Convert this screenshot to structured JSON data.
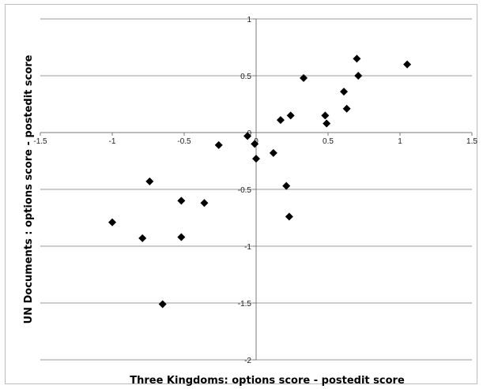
{
  "chart_data": {
    "type": "scatter",
    "xlabel": "Three Kingdoms: options score - postedit score",
    "ylabel": "UN Documents : options score - postedit score",
    "xlim": [
      -1.5,
      1.5
    ],
    "ylim": [
      -2,
      1
    ],
    "x_ticks": [
      "-1.5",
      "-1",
      "-0.5",
      "0",
      "0.5",
      "1",
      "1.5"
    ],
    "y_ticks": [
      "1",
      "0.5",
      "0",
      "-0.5",
      "-1",
      "-1.5",
      "-2"
    ],
    "x_tick_values": [
      -1.5,
      -1,
      -0.5,
      0,
      0.5,
      1,
      1.5
    ],
    "y_tick_values": [
      1,
      0.5,
      0,
      -0.5,
      -1,
      -1.5,
      -2
    ],
    "grid": "horizontal",
    "marker": "diamond",
    "marker_color": "#000000",
    "points": [
      {
        "x": 0.7,
        "y": 0.65
      },
      {
        "x": 1.05,
        "y": 0.6
      },
      {
        "x": 0.71,
        "y": 0.5
      },
      {
        "x": 0.33,
        "y": 0.48
      },
      {
        "x": 0.61,
        "y": 0.36
      },
      {
        "x": 0.63,
        "y": 0.21
      },
      {
        "x": 0.48,
        "y": 0.15
      },
      {
        "x": 0.24,
        "y": 0.15
      },
      {
        "x": 0.17,
        "y": 0.11
      },
      {
        "x": 0.49,
        "y": 0.08
      },
      {
        "x": -0.06,
        "y": -0.03
      },
      {
        "x": -0.26,
        "y": -0.11
      },
      {
        "x": -0.01,
        "y": -0.1
      },
      {
        "x": 0.12,
        "y": -0.18
      },
      {
        "x": 0.0,
        "y": -0.23
      },
      {
        "x": -0.74,
        "y": -0.43
      },
      {
        "x": 0.21,
        "y": -0.47
      },
      {
        "x": -0.52,
        "y": -0.6
      },
      {
        "x": -0.36,
        "y": -0.62
      },
      {
        "x": 0.23,
        "y": -0.74
      },
      {
        "x": -1.0,
        "y": -0.79
      },
      {
        "x": -0.79,
        "y": -0.93
      },
      {
        "x": -0.52,
        "y": -0.92
      },
      {
        "x": -0.65,
        "y": -1.51
      }
    ]
  }
}
